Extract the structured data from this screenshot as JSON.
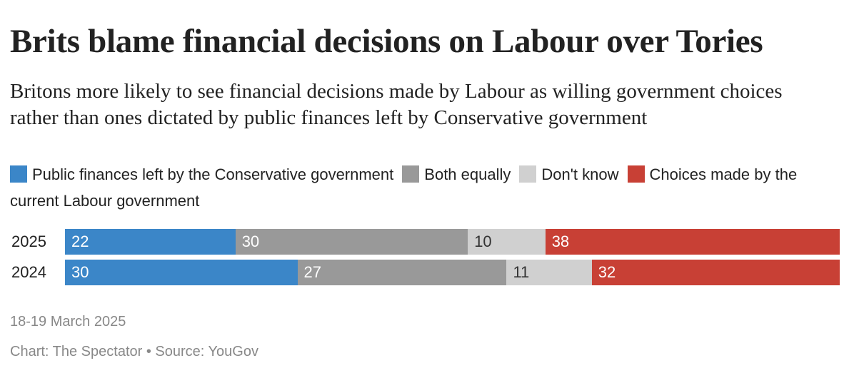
{
  "chart_data": {
    "type": "bar",
    "orientation": "horizontal",
    "stacked": true,
    "title": "Brits blame financial decisions on Labour over Tories",
    "subtitle": "Britons more likely to see financial decisions made by Labour as willing government choices rather than ones dictated by public finances left by Conservative government",
    "categories": [
      "2025",
      "2024"
    ],
    "series": [
      {
        "name": "Public finances left by the Conservative government",
        "values": [
          22,
          30
        ],
        "color": "#3b86c8",
        "label_color": "#ffffff"
      },
      {
        "name": "Both equally",
        "values": [
          30,
          27
        ],
        "color": "#999999",
        "label_color": "#ffffff"
      },
      {
        "name": "Don't know",
        "values": [
          10,
          11
        ],
        "color": "#d0d0d0",
        "label_color": "#333333"
      },
      {
        "name": "Choices made by the current Labour government",
        "values": [
          38,
          32
        ],
        "color": "#c84035",
        "label_color": "#ffffff"
      }
    ],
    "xlim": [
      0,
      100
    ],
    "legend_position": "top",
    "note": "18-19 March 2025",
    "credit": "Chart: The Spectator • Source: YouGov"
  }
}
